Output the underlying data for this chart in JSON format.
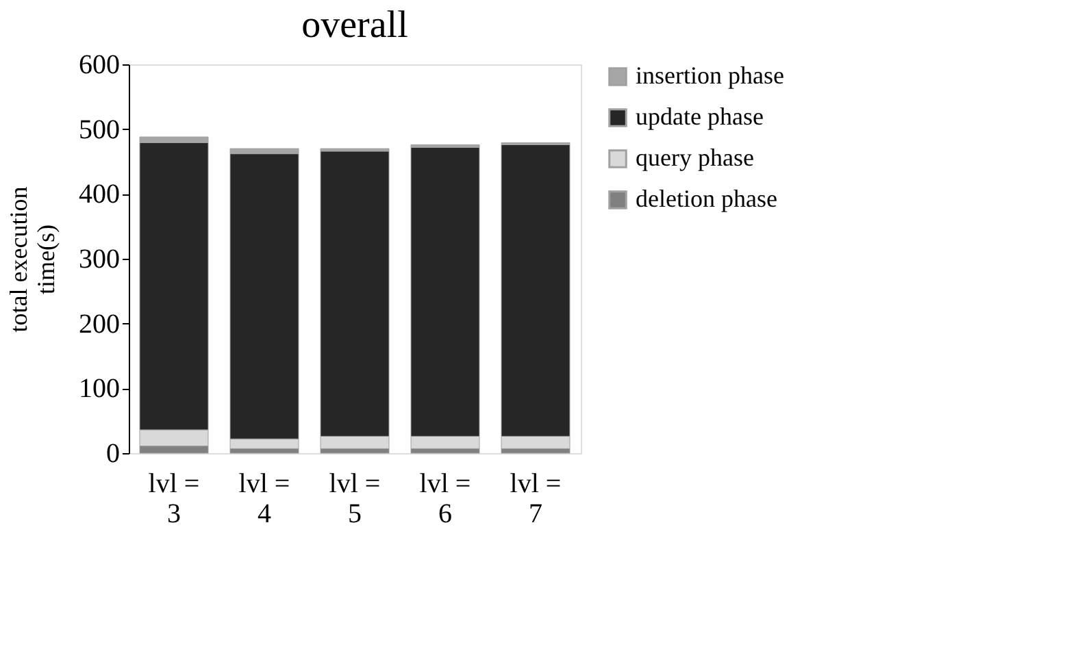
{
  "chart_data": {
    "type": "bar",
    "title": "overall",
    "ylabel": "total execution time(s)",
    "stacked": true,
    "categories": [
      "lvl = 3",
      "lvl = 4",
      "lvl = 5",
      "lvl = 6",
      "lvl = 7"
    ],
    "series": [
      {
        "name": "deletion phase",
        "color": "#808080",
        "values": [
          11,
          7,
          7,
          7,
          7
        ]
      },
      {
        "name": "query phase",
        "color": "#d9d9d9",
        "values": [
          25,
          15,
          19,
          19,
          19
        ]
      },
      {
        "name": "update phase",
        "color": "#262626",
        "values": [
          443,
          440,
          440,
          446,
          450
        ]
      },
      {
        "name": "insertion phase",
        "color": "#a6a6a6",
        "values": [
          9,
          8,
          4,
          4,
          3
        ]
      }
    ],
    "ylim": [
      0,
      600
    ],
    "yticks": [
      0,
      100,
      200,
      300,
      400,
      500,
      600
    ],
    "grid": false,
    "legend": "right"
  }
}
